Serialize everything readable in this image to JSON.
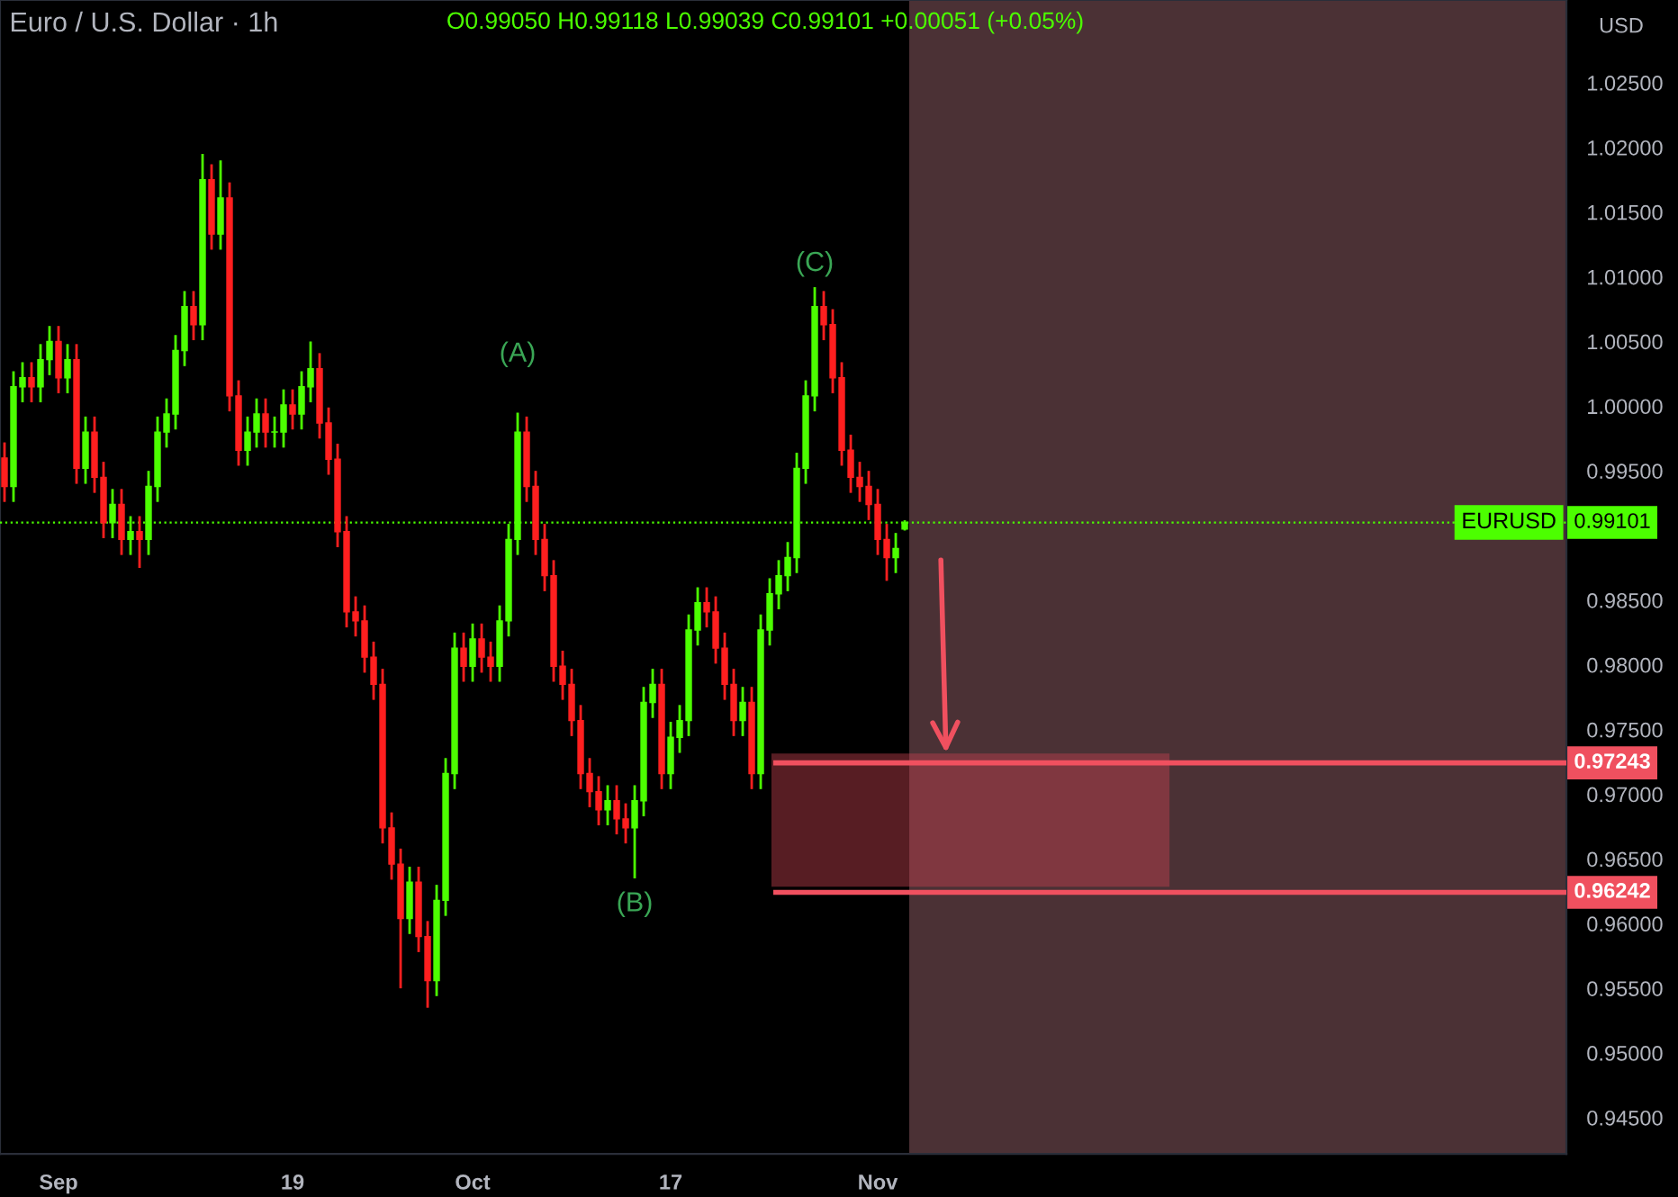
{
  "chart_data": {
    "type": "candlestick",
    "title": "Euro / U.S. Dollar · 1h",
    "subtitle": "O0.99050 H0.99118 L0.99039 C0.99101 +0.00051 (+0.05%)",
    "ylabel": "USD",
    "categories": [
      null,
      null,
      null,
      null,
      null,
      null,
      "Sep",
      null,
      null,
      null,
      null,
      null,
      null,
      null,
      null,
      null,
      null,
      null,
      null,
      null,
      null,
      null,
      null,
      null,
      null,
      null,
      null,
      null,
      null,
      null,
      null,
      null,
      "19",
      null,
      null,
      null,
      null,
      null,
      null,
      null,
      null,
      null,
      null,
      null,
      null,
      null,
      null,
      null,
      null,
      null,
      null,
      null,
      "Oct",
      null,
      null,
      null,
      null,
      null,
      null,
      null,
      null,
      null,
      null,
      null,
      null,
      null,
      null,
      null,
      null,
      null,
      null,
      null,
      null,
      null,
      "17",
      null,
      null,
      null,
      null,
      null,
      null,
      null,
      null,
      null,
      null,
      null,
      null,
      null,
      null,
      null,
      null,
      null,
      null,
      null,
      null,
      null,
      null,
      "Nov",
      null,
      null,
      null,
      null,
      null,
      null,
      null,
      null,
      null,
      null,
      null,
      null,
      null,
      null,
      null,
      null,
      null,
      null,
      null,
      null,
      null,
      null,
      null,
      null,
      null,
      null,
      null,
      null,
      null,
      null,
      null,
      null,
      null,
      null,
      null,
      null,
      null,
      null,
      null,
      null,
      null,
      null,
      null,
      null,
      null,
      null,
      null,
      null,
      null,
      null,
      null,
      null,
      null,
      null,
      null,
      null,
      null,
      null,
      null,
      null,
      null,
      null,
      null,
      null,
      null,
      null,
      null,
      null,
      null,
      null,
      null,
      null,
      null,
      null,
      null,
      null
    ],
    "ohlc": [
      [
        0.996,
        0.9972,
        0.9926,
        0.9938
      ],
      [
        0.9938,
        1.0027,
        0.9926,
        1.0015
      ],
      [
        1.0015,
        1.0034,
        1.0003,
        1.0022
      ],
      [
        1.0022,
        1.0034,
        1.0003,
        1.0015
      ],
      [
        1.0015,
        1.0048,
        1.0003,
        1.0036
      ],
      [
        1.0036,
        1.0062,
        1.0024,
        1.005
      ],
      [
        1.005,
        1.0062,
        1.001,
        1.0022
      ],
      [
        1.0022,
        1.0048,
        1.001,
        1.0036
      ],
      [
        1.0036,
        1.0048,
        0.994,
        0.9952
      ],
      [
        0.9952,
        0.9992,
        0.994,
        0.998
      ],
      [
        0.998,
        0.9992,
        0.9933,
        0.9945
      ],
      [
        0.9945,
        0.9957,
        0.9898,
        0.991
      ],
      [
        0.991,
        0.9936,
        0.9898,
        0.9924
      ],
      [
        0.9924,
        0.9936,
        0.9885,
        0.9897
      ],
      [
        0.9897,
        0.9915,
        0.9885,
        0.9903
      ],
      [
        0.9903,
        0.9915,
        0.9875,
        0.9897
      ],
      [
        0.9897,
        0.995,
        0.9885,
        0.9938
      ],
      [
        0.9938,
        0.9992,
        0.9926,
        0.998
      ],
      [
        0.998,
        1.0006,
        0.9968,
        0.9994
      ],
      [
        0.9994,
        1.0055,
        0.9982,
        1.0043
      ],
      [
        1.0043,
        1.0089,
        1.0031,
        1.0077
      ],
      [
        1.0077,
        1.0089,
        1.0051,
        1.0063
      ],
      [
        1.0063,
        1.0195,
        1.0051,
        1.0175
      ],
      [
        1.0175,
        1.0187,
        1.0121,
        1.0133
      ],
      [
        1.0133,
        1.019,
        1.0121,
        1.0161
      ],
      [
        1.0161,
        1.0173,
        0.9996,
        1.0008
      ],
      [
        1.0008,
        1.002,
        0.9954,
        0.9966
      ],
      [
        0.9966,
        0.9992,
        0.9954,
        0.998
      ],
      [
        0.998,
        1.0006,
        0.9968,
        0.9994
      ],
      [
        0.9994,
        1.0006,
        0.9968,
        0.998
      ],
      [
        0.998,
        0.9992,
        0.9968,
        0.998
      ],
      [
        0.998,
        1.0013,
        0.9968,
        1.0001
      ],
      [
        1.0001,
        1.0013,
        0.9982,
        0.9994
      ],
      [
        0.9994,
        1.0027,
        0.9982,
        1.0015
      ],
      [
        1.0015,
        1.005,
        1.0003,
        1.0029
      ],
      [
        1.0029,
        1.0041,
        0.9975,
        0.9987
      ],
      [
        0.9987,
        0.9999,
        0.9947,
        0.9959
      ],
      [
        0.9959,
        0.9971,
        0.9891,
        0.9903
      ],
      [
        0.9903,
        0.9915,
        0.9829,
        0.9841
      ],
      [
        0.9841,
        0.9853,
        0.9822,
        0.9834
      ],
      [
        0.9834,
        0.9846,
        0.9794,
        0.9806
      ],
      [
        0.9806,
        0.9818,
        0.9773,
        0.9785
      ],
      [
        0.9785,
        0.9797,
        0.9662,
        0.9674
      ],
      [
        0.9674,
        0.9686,
        0.9634,
        0.9646
      ],
      [
        0.9646,
        0.9658,
        0.955,
        0.9604
      ],
      [
        0.9604,
        0.9644,
        0.9592,
        0.9632
      ],
      [
        0.9632,
        0.9644,
        0.9578,
        0.959
      ],
      [
        0.959,
        0.9602,
        0.9535,
        0.9556
      ],
      [
        0.9556,
        0.963,
        0.9544,
        0.9618
      ],
      [
        0.9618,
        0.9728,
        0.9606,
        0.9716
      ],
      [
        0.9716,
        0.9825,
        0.9704,
        0.9813
      ],
      [
        0.9813,
        0.9825,
        0.9787,
        0.9799
      ],
      [
        0.9799,
        0.9832,
        0.9787,
        0.982
      ],
      [
        0.982,
        0.9832,
        0.9794,
        0.9806
      ],
      [
        0.9806,
        0.9818,
        0.9787,
        0.9799
      ],
      [
        0.9799,
        0.9846,
        0.9787,
        0.9834
      ],
      [
        0.9834,
        0.9909,
        0.9822,
        0.9897
      ],
      [
        0.9897,
        0.9995,
        0.9885,
        0.998
      ],
      [
        0.998,
        0.9992,
        0.9926,
        0.9938
      ],
      [
        0.9938,
        0.995,
        0.9885,
        0.9897
      ],
      [
        0.9897,
        0.9909,
        0.9857,
        0.9869
      ],
      [
        0.9869,
        0.9881,
        0.9787,
        0.9799
      ],
      [
        0.9799,
        0.9811,
        0.9773,
        0.9785
      ],
      [
        0.9785,
        0.9797,
        0.9745,
        0.9757
      ],
      [
        0.9757,
        0.9769,
        0.9704,
        0.9716
      ],
      [
        0.9716,
        0.9728,
        0.969,
        0.9702
      ],
      [
        0.9702,
        0.9714,
        0.9676,
        0.9688
      ],
      [
        0.9688,
        0.9707,
        0.9676,
        0.9695
      ],
      [
        0.9695,
        0.9707,
        0.9669,
        0.9681
      ],
      [
        0.9681,
        0.9693,
        0.9662,
        0.9674
      ],
      [
        0.9674,
        0.9707,
        0.9635,
        0.9695
      ],
      [
        0.9695,
        0.9783,
        0.9683,
        0.9771
      ],
      [
        0.9771,
        0.9797,
        0.9759,
        0.9785
      ],
      [
        0.9785,
        0.9797,
        0.9704,
        0.9716
      ],
      [
        0.9716,
        0.9756,
        0.9704,
        0.9744
      ],
      [
        0.9744,
        0.9769,
        0.9732,
        0.9757
      ],
      [
        0.9757,
        0.9839,
        0.9745,
        0.9827
      ],
      [
        0.9827,
        0.986,
        0.9815,
        0.9848
      ],
      [
        0.9848,
        0.986,
        0.9829,
        0.9841
      ],
      [
        0.9841,
        0.9853,
        0.9801,
        0.9813
      ],
      [
        0.9813,
        0.9825,
        0.9773,
        0.9785
      ],
      [
        0.9785,
        0.9797,
        0.9745,
        0.9757
      ],
      [
        0.9757,
        0.9783,
        0.9745,
        0.9771
      ],
      [
        0.9771,
        0.9783,
        0.9704,
        0.9716
      ],
      [
        0.9716,
        0.9839,
        0.9704,
        0.9827
      ],
      [
        0.9827,
        0.9867,
        0.9815,
        0.9855
      ],
      [
        0.9855,
        0.9881,
        0.9843,
        0.9869
      ],
      [
        0.9869,
        0.9895,
        0.9857,
        0.9883
      ],
      [
        0.9883,
        0.9964,
        0.9871,
        0.9952
      ],
      [
        0.9952,
        1.002,
        0.994,
        1.0008
      ],
      [
        1.0008,
        1.0092,
        0.9996,
        1.0077
      ],
      [
        1.0077,
        1.0089,
        1.0051,
        1.0063
      ],
      [
        1.0063,
        1.0075,
        1.001,
        1.0022
      ],
      [
        1.0022,
        1.0034,
        0.9954,
        0.9966
      ],
      [
        0.9966,
        0.9978,
        0.9933,
        0.9945
      ],
      [
        0.9945,
        0.9957,
        0.9926,
        0.9938
      ],
      [
        0.9938,
        0.995,
        0.9912,
        0.9924
      ],
      [
        0.9924,
        0.9936,
        0.9885,
        0.9897
      ],
      [
        0.9897,
        0.9909,
        0.9865,
        0.9883
      ],
      [
        0.9883,
        0.9902,
        0.9871,
        0.989
      ],
      [
        0.9905,
        0.99118,
        0.99039,
        0.99101
      ],
      null,
      null,
      null,
      null,
      null,
      null,
      null,
      null,
      null,
      null,
      null,
      null,
      null,
      null,
      null,
      null,
      null,
      null,
      null,
      null,
      null,
      null,
      null,
      null,
      null,
      null,
      null,
      null,
      null,
      null,
      null,
      null,
      null,
      null,
      null,
      null,
      null,
      null,
      null,
      null,
      null,
      null,
      null,
      null,
      null,
      null,
      null,
      null,
      null,
      null,
      null,
      null,
      null,
      null,
      null,
      null,
      null,
      null,
      null,
      null,
      null,
      null,
      null,
      null,
      null,
      null,
      null,
      null,
      null,
      null,
      null,
      null,
      null
    ],
    "ylim": [
      0.9422,
      1.0314
    ],
    "yticks": [
      {
        "value": 0.945,
        "label": "0.94500"
      },
      {
        "value": 0.95,
        "label": "0.95000"
      },
      {
        "value": 0.955,
        "label": "0.95500"
      },
      {
        "value": 0.96,
        "label": "0.96000"
      },
      {
        "value": 0.965,
        "label": "0.96500"
      },
      {
        "value": 0.97,
        "label": "0.97000"
      },
      {
        "value": 0.975,
        "label": "0.97500"
      },
      {
        "value": 0.98,
        "label": "0.98000"
      },
      {
        "value": 0.985,
        "label": "0.98500"
      },
      {
        "value": 0.995,
        "label": "0.99500"
      },
      {
        "value": 1.0,
        "label": "1.00000"
      },
      {
        "value": 1.005,
        "label": "1.00500"
      },
      {
        "value": 1.01,
        "label": "1.01000"
      },
      {
        "value": 1.015,
        "label": "1.01500"
      },
      {
        "value": 1.02,
        "label": "1.02000"
      },
      {
        "value": 1.025,
        "label": "1.02500"
      }
    ],
    "annotations": [
      "(A)",
      "(B)",
      "(C)",
      "EURUSD"
    ],
    "ref_lines": [
      {
        "axis": "y",
        "value": 0.99101,
        "label": "0.99101",
        "color": "#4cff00",
        "line_style": "dotted"
      },
      {
        "axis": "y",
        "value": 0.97243,
        "label": "0.97243",
        "color": "#f0505f",
        "line_style": "solid"
      },
      {
        "axis": "y",
        "value": 0.96242,
        "label": "0.96242",
        "color": "#f0505f",
        "line_style": "solid"
      }
    ],
    "bands": [
      {
        "axis": "y",
        "from": 0.963,
        "to": 0.973,
        "color": "#c0404f"
      }
    ],
    "grid": false
  }
}
